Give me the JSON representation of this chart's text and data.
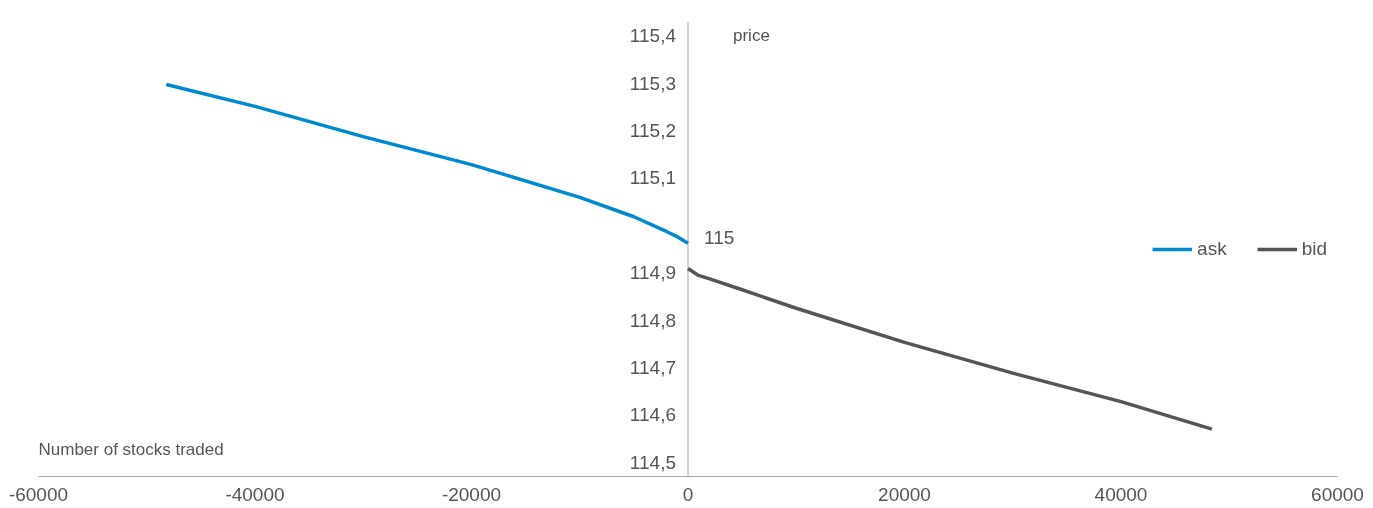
{
  "chart_data": {
    "type": "line",
    "xlabel": "Number of stocks traded",
    "ylabel": "price",
    "xlim": [
      -60000,
      60000
    ],
    "xticks": [
      -60000,
      -40000,
      -20000,
      0,
      20000,
      40000,
      60000
    ],
    "ylim": [
      114.47,
      115.43
    ],
    "yticks": [
      {
        "value": 114.5,
        "label": "114,5"
      },
      {
        "value": 114.6,
        "label": "114,6"
      },
      {
        "value": 114.7,
        "label": "114,7"
      },
      {
        "value": 114.8,
        "label": "114,8"
      },
      {
        "value": 114.9,
        "label": "114,9"
      },
      {
        "value": 115.1,
        "label": "115,1"
      },
      {
        "value": 115.2,
        "label": "115,2"
      },
      {
        "value": 115.3,
        "label": "115,3"
      },
      {
        "value": 115.4,
        "label": "115,4"
      }
    ],
    "annotations": [
      "115"
    ],
    "series": [
      {
        "name": "ask",
        "color": "#0088d1",
        "x": [
          -48200,
          -40000,
          -30000,
          -20000,
          -10000,
          -5000,
          -2000,
          -1000,
          0
        ],
        "values": [
          115.297,
          115.251,
          115.187,
          115.128,
          115.059,
          115.018,
          114.987,
          114.976,
          114.962
        ]
      },
      {
        "name": "bid",
        "color": "#555555",
        "x": [
          0,
          900,
          2000,
          5000,
          10000,
          20000,
          30000,
          40000,
          48400
        ],
        "values": [
          114.909,
          114.895,
          114.887,
          114.864,
          114.825,
          114.753,
          114.688,
          114.628,
          114.57
        ]
      }
    ],
    "legend": "right",
    "grid": false,
    "marker": "none",
    "line_style": "solid"
  }
}
